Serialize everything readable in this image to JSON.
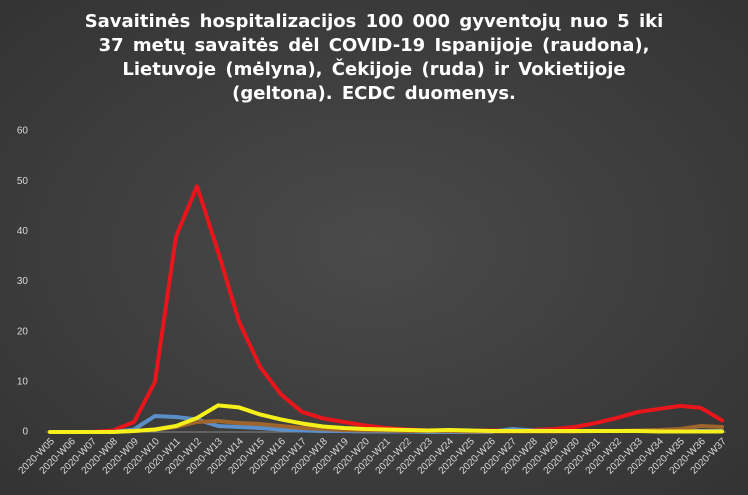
{
  "chart_data": {
    "type": "line",
    "title": "Savaitinės hospitalizacijos 100 000 gyventojų nuo 5 iki 37 metų savaitės dėl COVID-19 Ispanijoje (raudona), Lietuvoje (mėlyna), Čekijoje (ruda) ir Vokietijoje (geltona). ECDC duomenys.",
    "categories": [
      "2020-W05",
      "2020-W06",
      "2020-W07",
      "2020-W08",
      "2020-W09",
      "2020-W10",
      "2020-W11",
      "2020-W12",
      "2020-W13",
      "2020-W14",
      "2020-W15",
      "2020-W16",
      "2020-W17",
      "2020-W18",
      "2020-W19",
      "2020-W20",
      "2020-W21",
      "2020-W22",
      "2020-W23",
      "2020-W24",
      "2020-W25",
      "2020-W26",
      "2020-W27",
      "2020-W28",
      "2020-W29",
      "2020-W30",
      "2020-W31",
      "2020-W32",
      "2020-W33",
      "2020-W34",
      "2020-W35",
      "2020-W36",
      "2020-W37"
    ],
    "series": [
      {
        "color": "#e8151b",
        "values": [
          0,
          0,
          0,
          0.3,
          2,
          10,
          39,
          49,
          36,
          22,
          13,
          7.5,
          4,
          2.7,
          2,
          1.3,
          0.8,
          0.5,
          0.3,
          0.3,
          0.2,
          0.3,
          0.3,
          0.4,
          0.6,
          1,
          1.8,
          2.8,
          4,
          4.6,
          5.2,
          4.8,
          2.3
        ]
      },
      {
        "color": "#5b8fc9",
        "values": [
          0,
          0,
          0,
          0,
          0.5,
          3.2,
          3,
          2.5,
          1.2,
          1,
          0.8,
          0.5,
          0.3,
          0.2,
          0.2,
          0.1,
          0.1,
          0.1,
          0,
          0,
          0,
          0,
          0.6,
          0.3,
          0.2,
          0.2,
          0.2,
          0.2,
          0.2,
          0.2,
          0.2,
          0.2,
          0.2
        ]
      },
      {
        "color": "#a0652c",
        "values": [
          0,
          0,
          0,
          0,
          0.2,
          0.5,
          1,
          2,
          2.2,
          1.8,
          1.6,
          1.2,
          0.8,
          0.6,
          0.4,
          0.3,
          0.3,
          0.2,
          0.2,
          0.2,
          0.1,
          0.1,
          0.1,
          0.1,
          0.1,
          0.1,
          0.2,
          0.2,
          0.3,
          0.4,
          0.6,
          1.2,
          1
        ]
      },
      {
        "color": "#f5f01a",
        "values": [
          0,
          0,
          0,
          0,
          0.2,
          0.5,
          1.2,
          2.8,
          5.3,
          4.9,
          3.5,
          2.5,
          1.7,
          1.1,
          0.8,
          0.6,
          0.5,
          0.4,
          0.3,
          0.4,
          0.3,
          0.2,
          0.2,
          0.2,
          0.2,
          0.2,
          0.2,
          0.2,
          0.2,
          0.1,
          0.1,
          0.1,
          0.1
        ]
      }
    ],
    "ylim": [
      0,
      60
    ],
    "yticks": [
      0,
      10,
      20,
      30,
      40,
      50,
      60
    ],
    "grid": false
  }
}
